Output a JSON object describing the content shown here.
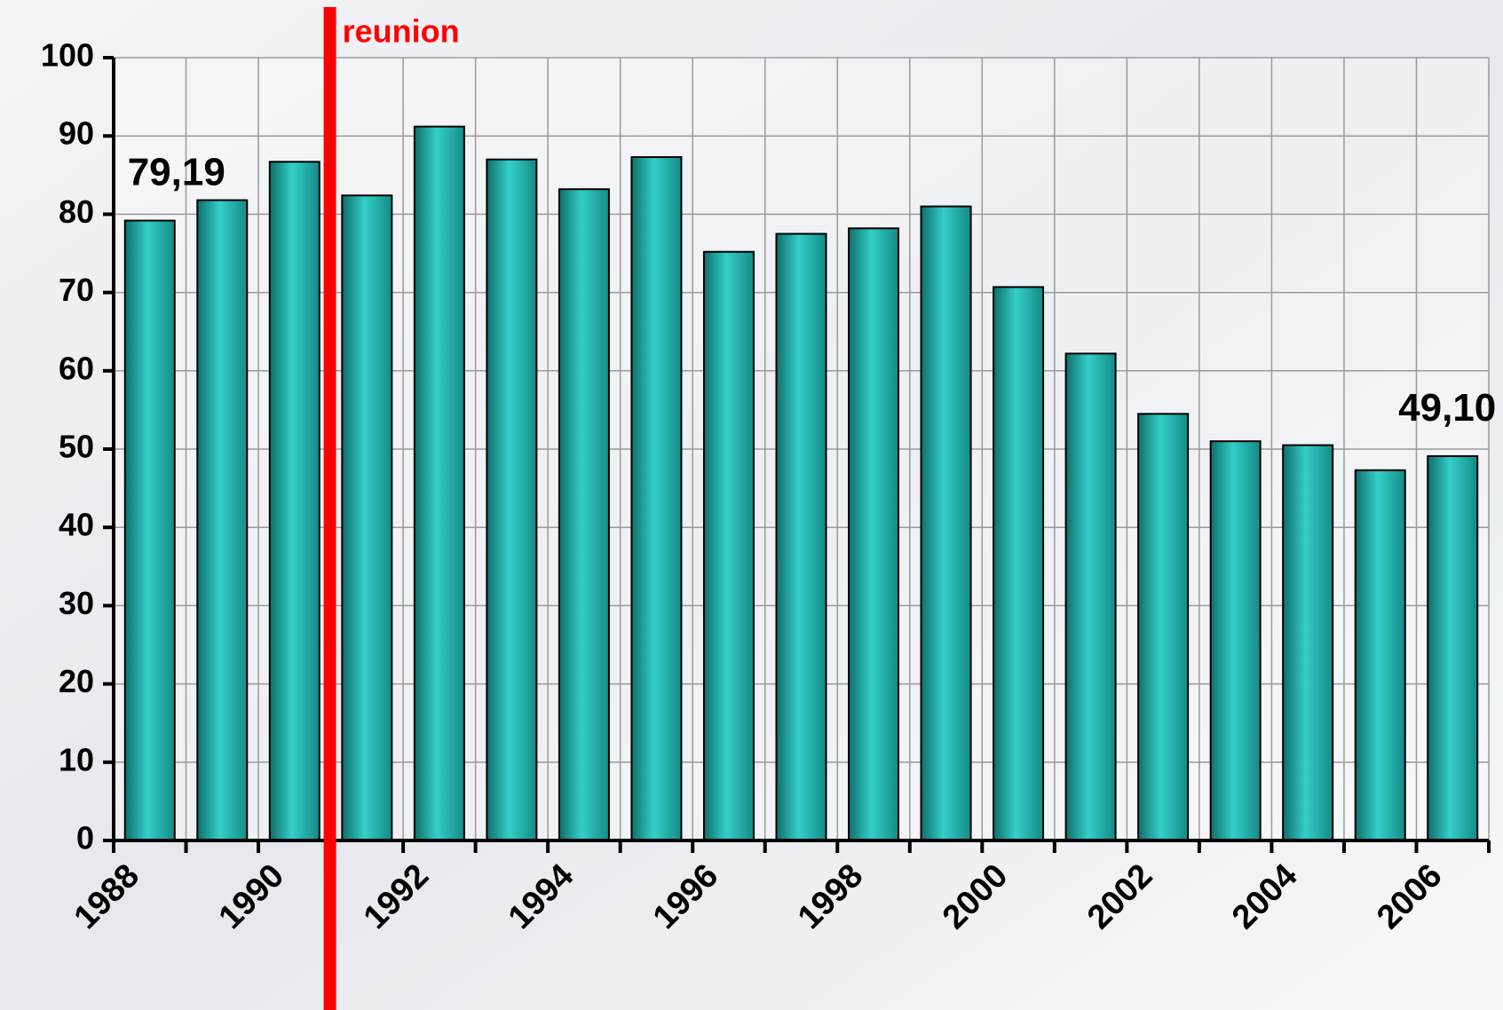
{
  "chart_data": {
    "type": "bar",
    "categories": [
      "1988",
      null,
      "1990",
      null,
      "1992",
      null,
      "1994",
      null,
      "1996",
      null,
      "1998",
      null,
      "2000",
      null,
      "2002",
      null,
      "2004",
      null,
      "2006"
    ],
    "values": [
      79.19,
      81.8,
      86.7,
      82.4,
      91.2,
      87.0,
      83.2,
      87.3,
      75.2,
      77.5,
      78.2,
      81.0,
      70.7,
      62.2,
      54.5,
      51.0,
      50.5,
      47.3,
      49.1
    ],
    "value_labels": [
      "79,19",
      null,
      null,
      null,
      null,
      null,
      null,
      null,
      null,
      null,
      null,
      null,
      null,
      null,
      null,
      null,
      null,
      null,
      "49,10"
    ],
    "color": "#2ab5b0",
    "ylim": [
      0,
      100
    ],
    "yticks": [
      0,
      10,
      20,
      30,
      40,
      50,
      60,
      70,
      80,
      90,
      100
    ],
    "grid": true,
    "annotation": {
      "text": "reunion",
      "color": "#ff0000"
    }
  }
}
